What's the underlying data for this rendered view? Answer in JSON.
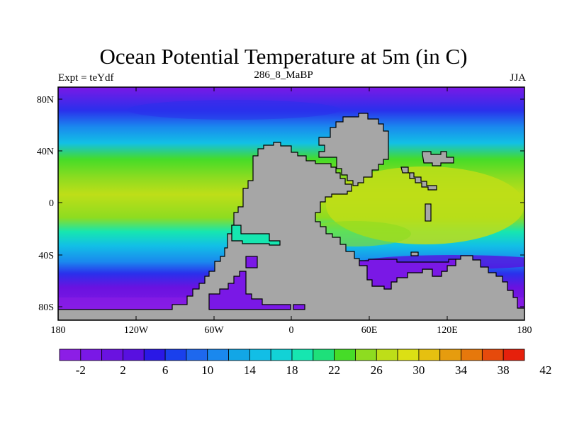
{
  "title": "Ocean Potential Temperature at 5m (in C)",
  "subtitle_left": "Expt = teYdf",
  "subtitle_center": "286_8_MaBP",
  "subtitle_right": "JJA",
  "x_ticks": [
    "180",
    "120W",
    "60W",
    "0",
    "60E",
    "120E",
    "180"
  ],
  "y_ticks": [
    "80N",
    "40N",
    "0",
    "40S",
    "80S"
  ],
  "colorbar": {
    "labels": [
      "-2",
      "2",
      "6",
      "10",
      "14",
      "18",
      "22",
      "26",
      "30",
      "34",
      "38",
      "42"
    ],
    "colors": [
      "#8c1ee6",
      "#7a18e6",
      "#6a12e0",
      "#5810e0",
      "#2a18e6",
      "#1a40ec",
      "#1e68ee",
      "#1a88ee",
      "#12a6e6",
      "#12bee6",
      "#12d2d6",
      "#16e6b0",
      "#1ee07a",
      "#46dc28",
      "#8edc20",
      "#bede18",
      "#dce014",
      "#e6c010",
      "#e69c0e",
      "#e6780c",
      "#e64a0c",
      "#e6200c"
    ]
  },
  "colors": {
    "land": "#a6a6a6",
    "deep_purple": "#7a18e6",
    "blue": "#2a30ec",
    "light_blue": "#1a88ee",
    "cyan": "#12c0e6",
    "teal": "#16e6b0",
    "green": "#46dc28",
    "yellow_green": "#bede18"
  }
}
